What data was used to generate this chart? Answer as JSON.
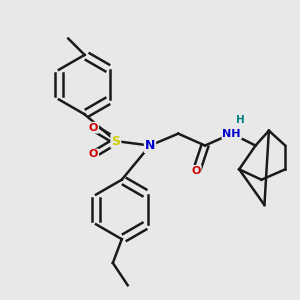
{
  "bg_color": "#e8e8e8",
  "line_color": "#1a1a1a",
  "bond_width": 1.8,
  "atom_colors": {
    "N": "#0000cc",
    "O": "#cc0000",
    "S": "#cccc00",
    "H": "#008080"
  },
  "figsize": [
    3.0,
    3.0
  ],
  "dpi": 100
}
